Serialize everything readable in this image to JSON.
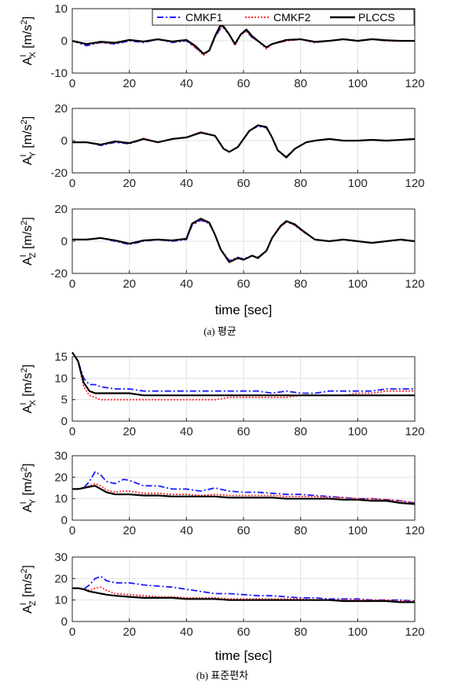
{
  "figure": {
    "caption_a": "(a) 평균",
    "caption_b": "(b) 표준편차",
    "xlabel": "time [sec]"
  },
  "legend": [
    {
      "name": "CMKF1",
      "color": "#1a1aff",
      "dash": "8,3,2,3"
    },
    {
      "name": "CMKF2",
      "color": "#ff2a2a",
      "dash": "2,2"
    },
    {
      "name": "PLCCS",
      "color": "#000000",
      "dash": ""
    }
  ],
  "chart_data": [
    {
      "type": "line",
      "panel": "mean-x",
      "ylabel_main": "A",
      "ylabel_sup": "I",
      "ylabel_sub": "X",
      "ylabel_unit": "[m/s",
      "ylabel_unit_sup": "2",
      "ylabel_unit_end": "]",
      "xlim": [
        0,
        120
      ],
      "ylim": [
        -10,
        10
      ],
      "xticks": [
        0,
        20,
        40,
        60,
        80,
        100,
        120
      ],
      "yticks": [
        -10,
        0,
        10
      ],
      "x": [
        0,
        5,
        10,
        15,
        20,
        25,
        30,
        35,
        40,
        43,
        46,
        48,
        50,
        52,
        53,
        55,
        57,
        59,
        61,
        63,
        65,
        68,
        70,
        75,
        80,
        85,
        90,
        95,
        100,
        105,
        110,
        115,
        120
      ],
      "series": [
        {
          "name": "CMKF1",
          "values": [
            0,
            -1.5,
            -0.5,
            -1.0,
            0,
            -0.5,
            0.5,
            -0.5,
            0,
            -2,
            -4,
            -3,
            1,
            4,
            4,
            2,
            -1,
            2,
            3,
            1,
            0,
            -2,
            -1,
            0,
            0.5,
            -0.5,
            0,
            0.5,
            0,
            0.5,
            0,
            0,
            0
          ]
        },
        {
          "name": "CMKF2",
          "values": [
            0,
            -1.0,
            -0.5,
            -0.8,
            0.2,
            -0.3,
            0.4,
            -0.3,
            0.2,
            -2,
            -4.5,
            -3,
            1,
            4.5,
            4,
            2,
            -1.5,
            2,
            3,
            1,
            0,
            -2.5,
            -1,
            0,
            0.5,
            -0.5,
            0,
            0.5,
            0,
            0.5,
            0,
            0,
            0
          ]
        },
        {
          "name": "PLCCS",
          "values": [
            0,
            -1.0,
            -0.3,
            -0.6,
            0.3,
            -0.2,
            0.5,
            -0.2,
            0.3,
            -1.5,
            -4,
            -3,
            1.5,
            5,
            4.5,
            2,
            -1,
            2,
            3.5,
            1.5,
            0,
            -2,
            -1,
            0.3,
            0.5,
            -0.3,
            0,
            0.5,
            0,
            0.5,
            0.2,
            0,
            0
          ]
        }
      ]
    },
    {
      "type": "line",
      "panel": "mean-y",
      "ylabel_main": "A",
      "ylabel_sup": "I",
      "ylabel_sub": "Y",
      "ylabel_unit": "[m/s",
      "ylabel_unit_sup": "2",
      "ylabel_unit_end": "]",
      "xlim": [
        0,
        120
      ],
      "ylim": [
        -20,
        20
      ],
      "xticks": [
        0,
        20,
        40,
        60,
        80,
        100,
        120
      ],
      "yticks": [
        -20,
        0,
        20
      ],
      "x": [
        0,
        5,
        10,
        15,
        20,
        25,
        30,
        35,
        40,
        45,
        50,
        53,
        55,
        58,
        62,
        65,
        68,
        70,
        72,
        75,
        78,
        82,
        85,
        90,
        95,
        100,
        105,
        110,
        115,
        120
      ],
      "series": [
        {
          "name": "CMKF1",
          "values": [
            -1,
            -1,
            -3,
            -1,
            -2,
            1,
            -1,
            1,
            2,
            5,
            3,
            -5,
            -7,
            -4,
            6,
            9,
            8,
            2,
            -6,
            -10,
            -5,
            -1,
            0,
            1,
            0,
            0,
            0.5,
            0,
            0.5,
            1
          ]
        },
        {
          "name": "CMKF2",
          "values": [
            -1,
            -1,
            -2.5,
            -0.5,
            -1.5,
            1.5,
            -1,
            1,
            2,
            5.5,
            3,
            -5,
            -7,
            -4,
            6,
            9.5,
            8,
            2,
            -6,
            -10,
            -5,
            -1,
            0,
            1,
            0,
            0,
            0.5,
            0,
            0.5,
            1
          ]
        },
        {
          "name": "PLCCS",
          "values": [
            -1,
            -1,
            -2.5,
            -0.5,
            -1.5,
            1,
            -1,
            1,
            2,
            5,
            3,
            -5,
            -7,
            -4,
            6,
            9.5,
            8.5,
            2,
            -6,
            -10.5,
            -5,
            -1,
            0,
            1,
            0,
            0,
            0.5,
            0,
            0.5,
            1
          ]
        }
      ]
    },
    {
      "type": "line",
      "panel": "mean-z",
      "ylabel_main": "A",
      "ylabel_sup": "I",
      "ylabel_sub": "Z",
      "ylabel_unit": "[m/s",
      "ylabel_unit_sup": "2",
      "ylabel_unit_end": "]",
      "xlim": [
        0,
        120
      ],
      "ylim": [
        -20,
        20
      ],
      "xticks": [
        0,
        20,
        40,
        60,
        80,
        100,
        120
      ],
      "yticks": [
        -20,
        0,
        20
      ],
      "x": [
        0,
        5,
        10,
        15,
        20,
        25,
        30,
        35,
        40,
        42,
        45,
        48,
        50,
        52,
        55,
        58,
        60,
        63,
        65,
        68,
        70,
        73,
        75,
        78,
        80,
        85,
        90,
        95,
        100,
        105,
        110,
        115,
        120
      ],
      "series": [
        {
          "name": "CMKF1",
          "values": [
            1,
            1,
            2,
            0,
            -2,
            0,
            1,
            0,
            1,
            10,
            13,
            11,
            4,
            -5,
            -12,
            -10,
            -11,
            -9,
            -10,
            -6,
            2,
            9,
            12,
            10,
            7,
            1,
            0,
            1,
            0,
            -1,
            0,
            1,
            0
          ]
        },
        {
          "name": "CMKF2",
          "values": [
            1,
            1,
            2,
            0.5,
            -1.5,
            0.5,
            1,
            0.5,
            1.5,
            10.5,
            13.5,
            11,
            4,
            -5,
            -12.5,
            -10,
            -11.5,
            -9,
            -10,
            -6,
            2,
            9,
            12,
            10,
            7,
            1,
            0,
            1,
            0,
            -1,
            0,
            1,
            0
          ]
        },
        {
          "name": "PLCCS",
          "values": [
            1,
            1,
            2,
            0.5,
            -1.5,
            0.5,
            1,
            0.5,
            1.5,
            11,
            14,
            11.5,
            4,
            -5,
            -13,
            -10.5,
            -11.5,
            -9,
            -10.5,
            -6,
            2,
            9.5,
            12.5,
            10.5,
            7.5,
            1,
            0,
            1,
            0,
            -1,
            0,
            1,
            0
          ]
        }
      ]
    },
    {
      "type": "line",
      "panel": "std-x",
      "ylabel_main": "A",
      "ylabel_sup": "I",
      "ylabel_sub": "X",
      "ylabel_unit": "[m/s",
      "ylabel_unit_sup": "2",
      "ylabel_unit_end": "]",
      "xlim": [
        0,
        120
      ],
      "ylim": [
        0,
        15
      ],
      "xticks": [
        0,
        20,
        40,
        60,
        80,
        100,
        120
      ],
      "yticks": [
        0,
        5,
        10,
        15
      ],
      "x": [
        0,
        2,
        4,
        6,
        8,
        10,
        15,
        20,
        25,
        30,
        35,
        40,
        45,
        50,
        55,
        60,
        65,
        70,
        75,
        80,
        85,
        90,
        95,
        100,
        105,
        110,
        115,
        120
      ],
      "series": [
        {
          "name": "CMKF1",
          "values": [
            16,
            14,
            10,
            8.5,
            8.5,
            8.0,
            7.5,
            7.5,
            7.0,
            7.0,
            7.0,
            7.0,
            7.0,
            7.0,
            7.0,
            7.0,
            7.0,
            6.5,
            7.0,
            6.5,
            6.5,
            7.0,
            7.0,
            7.0,
            7.0,
            7.5,
            7.5,
            7.5
          ]
        },
        {
          "name": "CMKF2",
          "values": [
            16,
            14,
            8,
            6.0,
            5.5,
            5.0,
            5.0,
            5.0,
            5.0,
            5.0,
            5.0,
            5.0,
            5.0,
            5.0,
            5.5,
            5.5,
            5.5,
            5.5,
            5.5,
            6.0,
            6.0,
            6.0,
            6.0,
            6.5,
            6.5,
            7.0,
            7.0,
            7.0
          ]
        },
        {
          "name": "PLCCS",
          "values": [
            16,
            14,
            9,
            7.0,
            6.5,
            6.5,
            6.5,
            6.5,
            6.0,
            6.0,
            6.0,
            6.0,
            6.0,
            6.0,
            6.0,
            6.0,
            6.0,
            6.0,
            6.0,
            6.0,
            6.0,
            6.0,
            6.0,
            6.0,
            6.0,
            6.0,
            6.0,
            6.0
          ]
        }
      ]
    },
    {
      "type": "line",
      "panel": "std-y",
      "ylabel_main": "A",
      "ylabel_sup": "I",
      "ylabel_sub": "Y",
      "ylabel_unit": "[m/s",
      "ylabel_unit_sup": "2",
      "ylabel_unit_end": "]",
      "xlim": [
        0,
        120
      ],
      "ylim": [
        0,
        30
      ],
      "xticks": [
        0,
        20,
        40,
        60,
        80,
        100,
        120
      ],
      "yticks": [
        0,
        10,
        20,
        30
      ],
      "x": [
        0,
        2,
        4,
        6,
        8,
        10,
        12,
        15,
        18,
        20,
        25,
        30,
        35,
        40,
        45,
        50,
        55,
        60,
        65,
        70,
        75,
        80,
        85,
        90,
        95,
        100,
        105,
        110,
        115,
        120
      ],
      "series": [
        {
          "name": "CMKF1",
          "values": [
            14.5,
            14.5,
            15,
            18,
            22.5,
            21,
            18,
            17,
            19,
            18.5,
            16,
            16,
            14.5,
            14.5,
            13.5,
            15,
            13.5,
            13,
            13,
            12.5,
            12,
            12,
            11.5,
            11,
            10.5,
            10,
            10,
            9.5,
            9,
            8
          ]
        },
        {
          "name": "CMKF2",
          "values": [
            14.5,
            14.5,
            15,
            16,
            17,
            16,
            14,
            13,
            13.5,
            13.5,
            12.5,
            12.5,
            12,
            12,
            11.5,
            12,
            11.5,
            11.5,
            11.5,
            11.5,
            11,
            11,
            11,
            10.5,
            10.5,
            10,
            10,
            9.5,
            9,
            8
          ]
        },
        {
          "name": "PLCCS",
          "values": [
            14.5,
            14.5,
            15,
            15.5,
            16,
            14.5,
            13,
            12,
            12,
            12,
            11.5,
            11.5,
            11,
            11,
            11,
            11,
            10.5,
            10.5,
            10.5,
            10.5,
            10,
            10,
            10,
            10,
            9.5,
            9.5,
            9,
            9,
            8,
            7.5
          ]
        }
      ]
    },
    {
      "type": "line",
      "panel": "std-z",
      "ylabel_main": "A",
      "ylabel_sup": "I",
      "ylabel_sub": "Z",
      "ylabel_unit": "[m/s",
      "ylabel_unit_sup": "2",
      "ylabel_unit_end": "]",
      "xlim": [
        0,
        120
      ],
      "ylim": [
        0,
        30
      ],
      "xticks": [
        0,
        20,
        40,
        60,
        80,
        100,
        120
      ],
      "yticks": [
        0,
        10,
        20,
        30
      ],
      "x": [
        0,
        2,
        4,
        6,
        8,
        10,
        12,
        15,
        20,
        25,
        30,
        35,
        40,
        45,
        50,
        55,
        60,
        65,
        70,
        75,
        80,
        85,
        90,
        95,
        100,
        105,
        110,
        115,
        120
      ],
      "series": [
        {
          "name": "CMKF1",
          "values": [
            15.5,
            15.5,
            15,
            17,
            20,
            21,
            19,
            18,
            18,
            17,
            16.5,
            16,
            15,
            14,
            13,
            13,
            12.5,
            12,
            12,
            11.5,
            11,
            11,
            10.5,
            10.5,
            10.5,
            10,
            10,
            10,
            9.5
          ]
        },
        {
          "name": "CMKF2",
          "values": [
            15.5,
            15.5,
            15,
            14.5,
            15.5,
            16,
            14.5,
            13,
            12.5,
            12,
            11.5,
            11.5,
            11,
            11,
            11,
            10.5,
            10.5,
            10.5,
            10.5,
            10.5,
            10.5,
            10,
            10,
            10,
            10,
            10,
            10,
            9.5,
            9.5
          ]
        },
        {
          "name": "PLCCS",
          "values": [
            15.5,
            15.5,
            15,
            14,
            13.5,
            13,
            12.5,
            12,
            11.5,
            11,
            11,
            11,
            10.5,
            10.5,
            10.5,
            10,
            10,
            10,
            10,
            10,
            10,
            10,
            10,
            9.5,
            9.5,
            9.5,
            9.5,
            9,
            9
          ]
        }
      ]
    }
  ]
}
